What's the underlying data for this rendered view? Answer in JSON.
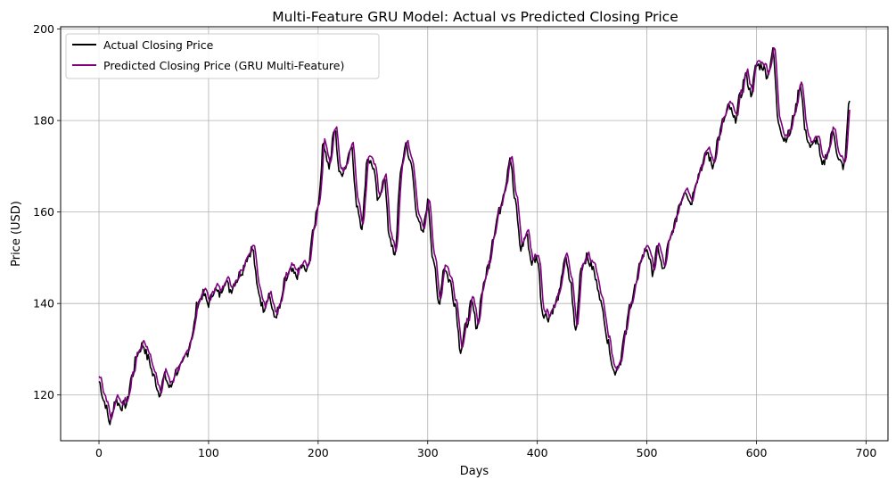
{
  "chart_data": {
    "type": "line",
    "title": "Multi-Feature GRU Model: Actual vs Predicted Closing Price",
    "xlabel": "Days",
    "ylabel": "Price (USD)",
    "xlim": [
      -35,
      720
    ],
    "ylim": [
      110,
      200.5
    ],
    "xticks": [
      0,
      100,
      200,
      300,
      400,
      500,
      600,
      700
    ],
    "yticks": [
      120,
      140,
      160,
      180,
      200
    ],
    "grid": true,
    "legend_position": "top-left",
    "anchors": [
      [
        0,
        123
      ],
      [
        5,
        118.5
      ],
      [
        10,
        114
      ],
      [
        15,
        119
      ],
      [
        20,
        117.5
      ],
      [
        25,
        118
      ],
      [
        30,
        124
      ],
      [
        35,
        129
      ],
      [
        40,
        131
      ],
      [
        45,
        128
      ],
      [
        50,
        124
      ],
      [
        55,
        120.5
      ],
      [
        60,
        124
      ],
      [
        65,
        121.5
      ],
      [
        70,
        125
      ],
      [
        75,
        126
      ],
      [
        80,
        129
      ],
      [
        85,
        133
      ],
      [
        90,
        140
      ],
      [
        95,
        142
      ],
      [
        100,
        140
      ],
      [
        105,
        143
      ],
      [
        110,
        142
      ],
      [
        115,
        145
      ],
      [
        120,
        143
      ],
      [
        125,
        145
      ],
      [
        130,
        147
      ],
      [
        135,
        150
      ],
      [
        140,
        152
      ],
      [
        145,
        143
      ],
      [
        150,
        139
      ],
      [
        155,
        142
      ],
      [
        160,
        137
      ],
      [
        165,
        139
      ],
      [
        170,
        145
      ],
      [
        175,
        147
      ],
      [
        180,
        146
      ],
      [
        185,
        148
      ],
      [
        190,
        147
      ],
      [
        195,
        155
      ],
      [
        200,
        162
      ],
      [
        205,
        175
      ],
      [
        210,
        170
      ],
      [
        215,
        178
      ],
      [
        220,
        168
      ],
      [
        225,
        170
      ],
      [
        230,
        175
      ],
      [
        235,
        162
      ],
      [
        240,
        157
      ],
      [
        245,
        172
      ],
      [
        250,
        170
      ],
      [
        255,
        162
      ],
      [
        260,
        168
      ],
      [
        265,
        155
      ],
      [
        270,
        150
      ],
      [
        275,
        168
      ],
      [
        280,
        175
      ],
      [
        285,
        170
      ],
      [
        290,
        160
      ],
      [
        295,
        155
      ],
      [
        300,
        162
      ],
      [
        305,
        150
      ],
      [
        310,
        140
      ],
      [
        315,
        148
      ],
      [
        320,
        145
      ],
      [
        325,
        140
      ],
      [
        330,
        130
      ],
      [
        335,
        135
      ],
      [
        340,
        140
      ],
      [
        345,
        135
      ],
      [
        350,
        143
      ],
      [
        355,
        148
      ],
      [
        360,
        155
      ],
      [
        365,
        160
      ],
      [
        370,
        165
      ],
      [
        375,
        172
      ],
      [
        380,
        162
      ],
      [
        385,
        152
      ],
      [
        390,
        155
      ],
      [
        395,
        149
      ],
      [
        400,
        150
      ],
      [
        405,
        138
      ],
      [
        410,
        137
      ],
      [
        415,
        139
      ],
      [
        420,
        142
      ],
      [
        425,
        150
      ],
      [
        430,
        145
      ],
      [
        435,
        134
      ],
      [
        440,
        148
      ],
      [
        445,
        150
      ],
      [
        450,
        148
      ],
      [
        455,
        144
      ],
      [
        460,
        138
      ],
      [
        465,
        131
      ],
      [
        470,
        125
      ],
      [
        475,
        127
      ],
      [
        480,
        133
      ],
      [
        485,
        140
      ],
      [
        490,
        144
      ],
      [
        495,
        150
      ],
      [
        500,
        152
      ],
      [
        505,
        147
      ],
      [
        510,
        152
      ],
      [
        515,
        147
      ],
      [
        520,
        153
      ],
      [
        525,
        157
      ],
      [
        530,
        162
      ],
      [
        535,
        165
      ],
      [
        540,
        162
      ],
      [
        545,
        167
      ],
      [
        550,
        170
      ],
      [
        555,
        173
      ],
      [
        560,
        170
      ],
      [
        565,
        176
      ],
      [
        570,
        180
      ],
      [
        575,
        183
      ],
      [
        580,
        180
      ],
      [
        585,
        185
      ],
      [
        590,
        190
      ],
      [
        595,
        186
      ],
      [
        600,
        192
      ],
      [
        605,
        192
      ],
      [
        610,
        190
      ],
      [
        615,
        195
      ],
      [
        620,
        180
      ],
      [
        625,
        176
      ],
      [
        630,
        177
      ],
      [
        635,
        182
      ],
      [
        640,
        188
      ],
      [
        645,
        177
      ],
      [
        650,
        174
      ],
      [
        655,
        176
      ],
      [
        660,
        170
      ],
      [
        665,
        173
      ],
      [
        670,
        178
      ],
      [
        675,
        171
      ],
      [
        680,
        170
      ],
      [
        685,
        185
      ]
    ],
    "series": [
      {
        "name": "Actual Closing Price",
        "color": "#000000"
      },
      {
        "name": "Predicted Closing Price (GRU Multi-Feature)",
        "color": "#800080"
      }
    ]
  }
}
